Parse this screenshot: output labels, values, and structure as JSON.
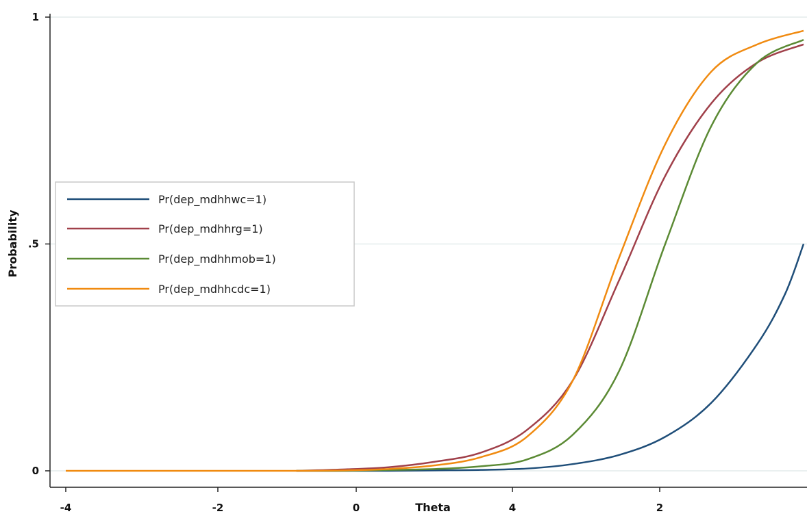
{
  "chart_data": {
    "type": "line",
    "title": "",
    "xlabel": "Theta",
    "ylabel": "Probability",
    "x_ticks": [
      "-4",
      "-2",
      "0",
      "4",
      "2"
    ],
    "y_ticks": [
      "0",
      ".5",
      "1"
    ],
    "xlim": [
      -4,
      4
    ],
    "ylim": [
      0,
      1
    ],
    "grid": "horizontal",
    "legend_position": "middle-left",
    "series": [
      {
        "name": "Pr(dep_mdhhwc=1)",
        "color": "#1f4e79",
        "x": [
          -1.5,
          -1,
          -0.5,
          0,
          0.5,
          1,
          1.5,
          2,
          2.5,
          3,
          3.5,
          3.8,
          4
        ],
        "y": [
          0.0,
          0.0,
          0.0,
          0.001,
          0.002,
          0.005,
          0.015,
          0.035,
          0.075,
          0.15,
          0.28,
          0.39,
          0.5
        ]
      },
      {
        "name": "Pr(dep_mdhhrg=1)",
        "color": "#a0404a",
        "x": [
          -1.5,
          -1,
          -0.5,
          0,
          0.5,
          1,
          1.5,
          2,
          2.5,
          3,
          3.5,
          4
        ],
        "y": [
          0.0,
          0.003,
          0.008,
          0.02,
          0.04,
          0.09,
          0.2,
          0.42,
          0.65,
          0.81,
          0.9,
          0.94
        ]
      },
      {
        "name": "Pr(dep_mdhhmob=1)",
        "color": "#5b8a34",
        "x": [
          -1.5,
          -1,
          -0.5,
          0,
          0.5,
          1,
          1.5,
          2,
          2.5,
          3,
          3.5,
          4
        ],
        "y": [
          0.0,
          0.0,
          0.002,
          0.004,
          0.01,
          0.025,
          0.08,
          0.22,
          0.5,
          0.76,
          0.9,
          0.95
        ]
      },
      {
        "name": "Pr(dep_mdhhcdc=1)",
        "color": "#f08a10",
        "x": [
          -4,
          -3,
          -2,
          -1.5,
          -1,
          -0.5,
          0,
          0.5,
          1,
          1.5,
          2,
          2.5,
          3,
          3.5,
          4
        ],
        "y": [
          0.0,
          0.0,
          0.0,
          0.0,
          0.001,
          0.004,
          0.012,
          0.03,
          0.075,
          0.2,
          0.47,
          0.72,
          0.88,
          0.94,
          0.97
        ]
      }
    ]
  }
}
